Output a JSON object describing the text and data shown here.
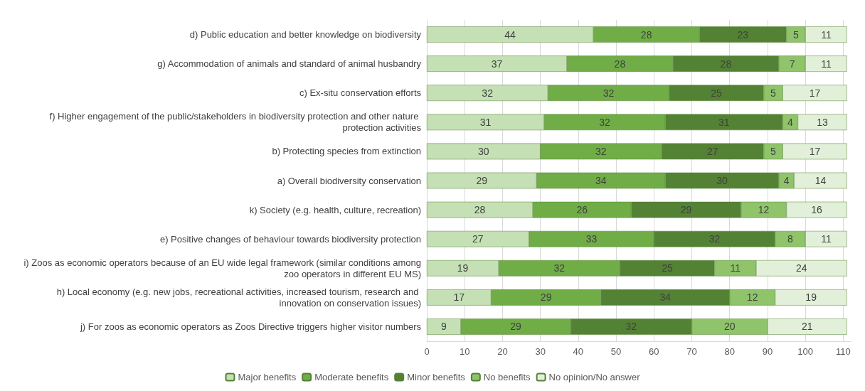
{
  "chart_data": {
    "type": "bar",
    "orientation": "horizontal",
    "stacked": true,
    "data_labels": true,
    "grid": "x",
    "legend": "bottom",
    "categories": [
      "d) Public education and better knowledge on biodiversity",
      "g) Accommodation of animals and standard of animal husbandry",
      "c) Ex-situ conservation efforts",
      "f) Higher engagement of the public/stakeholders in biodiversity protection and other nature protection activities",
      "b) Protecting species from extinction",
      "a) Overall biodiversity conservation",
      "k) Society (e.g. health, culture, recreation)",
      "e) Positive changes of behaviour towards biodiversity protection",
      "i) Zoos as economic operators because of an EU wide legal framework (similar conditions among zoo operators in different EU MS)",
      "h) Local economy (e.g. new jobs, recreational activities, increased tourism, research and innovation on conservation issues)",
      "j) For zoos as economic operators as Zoos Directive triggers higher visitor numbers"
    ],
    "series": [
      {
        "name": "Major benefits",
        "color": "#c5e0b4",
        "values": [
          44,
          37,
          32,
          31,
          30,
          29,
          28,
          27,
          19,
          17,
          9
        ]
      },
      {
        "name": "Moderate benefits",
        "color": "#70ad47",
        "values": [
          28,
          28,
          32,
          32,
          32,
          34,
          26,
          33,
          32,
          29,
          29
        ]
      },
      {
        "name": "Minor benefits",
        "color": "#548235",
        "values": [
          23,
          28,
          25,
          31,
          27,
          30,
          29,
          32,
          25,
          34,
          32
        ]
      },
      {
        "name": "No benefits",
        "color": "#8fc46a",
        "values": [
          5,
          7,
          5,
          4,
          5,
          4,
          12,
          8,
          11,
          12,
          20
        ]
      },
      {
        "name": "No opinion/No answer",
        "color": "#e2f0d9",
        "values": [
          11,
          11,
          17,
          13,
          17,
          14,
          16,
          11,
          24,
          19,
          21
        ]
      }
    ],
    "xlim": [
      0,
      112
    ],
    "xticks": [
      0,
      10,
      20,
      30,
      40,
      50,
      60,
      70,
      80,
      90,
      100,
      110
    ]
  }
}
